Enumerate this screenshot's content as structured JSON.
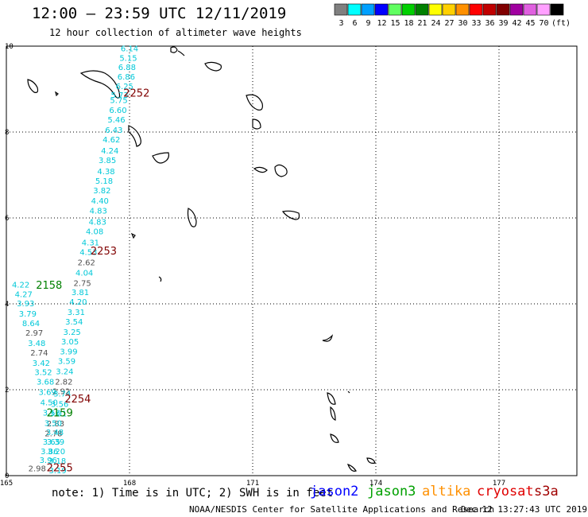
{
  "title": "12:00 – 23:59 UTC 12/11/2019",
  "subtitle": "12 hour collection of altimeter wave heights",
  "legend": {
    "unit": "(ft)",
    "bins": [
      {
        "label": "3",
        "color": "#808080"
      },
      {
        "label": "6",
        "color": "#00ffff"
      },
      {
        "label": "9",
        "color": "#00a0ff"
      },
      {
        "label": "12",
        "color": "#0000ff"
      },
      {
        "label": "15",
        "color": "#60ff60"
      },
      {
        "label": "18",
        "color": "#00d000"
      },
      {
        "label": "21",
        "color": "#008000"
      },
      {
        "label": "24",
        "color": "#ffff00"
      },
      {
        "label": "27",
        "color": "#ffd000"
      },
      {
        "label": "30",
        "color": "#ff9000"
      },
      {
        "label": "33",
        "color": "#ff0000"
      },
      {
        "label": "36",
        "color": "#c00000"
      },
      {
        "label": "39",
        "color": "#800000"
      },
      {
        "label": "42",
        "color": "#a000a0"
      },
      {
        "label": "45",
        "color": "#e060e0"
      },
      {
        "label": "70",
        "color": "#ffa0ff"
      },
      {
        "label": "",
        "color": "#000000"
      }
    ]
  },
  "axes": {
    "lon_labels": [
      "165",
      "168",
      "171",
      "174",
      "177"
    ],
    "lat_labels": [
      "0",
      "2",
      "4",
      "6",
      "8",
      "10"
    ]
  },
  "colors": {
    "cyan": "#00c8d8",
    "gray": "#505050",
    "maroon": "#800000",
    "green": "#008000"
  },
  "passes": [
    {
      "label": "2252",
      "lon": 167.85,
      "lat": 8.82,
      "color": "#800000"
    },
    {
      "label": "2253",
      "lon": 167.05,
      "lat": 5.15,
      "color": "#800000"
    },
    {
      "label": "2158",
      "lon": 165.72,
      "lat": 4.35,
      "color": "#008000"
    },
    {
      "label": "2254",
      "lon": 166.42,
      "lat": 1.7,
      "color": "#800000"
    },
    {
      "label": "2159",
      "lon": 165.98,
      "lat": 1.38,
      "color": "#008000"
    },
    {
      "label": "2255",
      "lon": 165.98,
      "lat": 0.1,
      "color": "#800000"
    }
  ],
  "observations": [
    {
      "v": "6.14",
      "lon": 168.0,
      "lat": 9.88,
      "c": "cyan"
    },
    {
      "v": "5.15",
      "lon": 167.97,
      "lat": 9.66,
      "c": "cyan"
    },
    {
      "v": "6.88",
      "lon": 167.94,
      "lat": 9.44,
      "c": "cyan"
    },
    {
      "v": "6.86",
      "lon": 167.92,
      "lat": 9.22,
      "c": "cyan"
    },
    {
      "v": "6.25",
      "lon": 167.88,
      "lat": 9.0,
      "c": "cyan"
    },
    {
      "v": "5.73",
      "lon": 167.76,
      "lat": 8.8,
      "c": "cyan"
    },
    {
      "v": "5.75",
      "lon": 167.74,
      "lat": 8.68,
      "c": "cyan"
    },
    {
      "v": "6.60",
      "lon": 167.72,
      "lat": 8.44,
      "c": "cyan"
    },
    {
      "v": "5.46",
      "lon": 167.68,
      "lat": 8.22,
      "c": "cyan"
    },
    {
      "v": "6.43",
      "lon": 167.62,
      "lat": 7.98,
      "c": "cyan"
    },
    {
      "v": "4.62",
      "lon": 167.56,
      "lat": 7.76,
      "c": "cyan"
    },
    {
      "v": "4.24",
      "lon": 167.52,
      "lat": 7.5,
      "c": "cyan"
    },
    {
      "v": "3.85",
      "lon": 167.46,
      "lat": 7.28,
      "c": "cyan"
    },
    {
      "v": "4.38",
      "lon": 167.43,
      "lat": 7.02,
      "c": "cyan"
    },
    {
      "v": "5.18",
      "lon": 167.38,
      "lat": 6.8,
      "c": "cyan"
    },
    {
      "v": "3.82",
      "lon": 167.33,
      "lat": 6.57,
      "c": "cyan"
    },
    {
      "v": "4.40",
      "lon": 167.28,
      "lat": 6.33,
      "c": "cyan"
    },
    {
      "v": "4.83",
      "lon": 167.24,
      "lat": 6.1,
      "c": "cyan"
    },
    {
      "v": "4.83",
      "lon": 167.22,
      "lat": 5.84,
      "c": "cyan"
    },
    {
      "v": "4.08",
      "lon": 167.15,
      "lat": 5.62,
      "c": "cyan"
    },
    {
      "v": "4.31",
      "lon": 167.05,
      "lat": 5.36,
      "c": "cyan"
    },
    {
      "v": "4.53",
      "lon": 167.0,
      "lat": 5.14,
      "c": "cyan"
    },
    {
      "v": "2.62",
      "lon": 166.95,
      "lat": 4.9,
      "c": "gray"
    },
    {
      "v": "4.04",
      "lon": 166.9,
      "lat": 4.66,
      "c": "cyan"
    },
    {
      "v": "2.75",
      "lon": 166.85,
      "lat": 4.42,
      "c": "gray"
    },
    {
      "v": "3.81",
      "lon": 166.8,
      "lat": 4.2,
      "c": "cyan"
    },
    {
      "v": "4.20",
      "lon": 166.75,
      "lat": 3.98,
      "c": "cyan"
    },
    {
      "v": "3.31",
      "lon": 166.7,
      "lat": 3.74,
      "c": "cyan"
    },
    {
      "v": "3.54",
      "lon": 166.65,
      "lat": 3.52,
      "c": "cyan"
    },
    {
      "v": "3.25",
      "lon": 166.6,
      "lat": 3.28,
      "c": "cyan"
    },
    {
      "v": "3.05",
      "lon": 166.55,
      "lat": 3.06,
      "c": "cyan"
    },
    {
      "v": "3.99",
      "lon": 166.52,
      "lat": 2.82,
      "c": "cyan"
    },
    {
      "v": "3.59",
      "lon": 166.47,
      "lat": 2.6,
      "c": "cyan"
    },
    {
      "v": "3.24",
      "lon": 166.42,
      "lat": 2.36,
      "c": "cyan"
    },
    {
      "v": "2.82",
      "lon": 166.4,
      "lat": 2.12,
      "c": "gray"
    },
    {
      "v": "2.92",
      "lon": 166.34,
      "lat": 1.9,
      "c": "gray"
    },
    {
      "v": "3.74",
      "lon": 166.36,
      "lat": 1.84,
      "c": "cyan"
    },
    {
      "v": "3.56",
      "lon": 166.3,
      "lat": 1.6,
      "c": "cyan"
    },
    {
      "v": "3.01",
      "lon": 166.26,
      "lat": 1.38,
      "c": "cyan"
    },
    {
      "v": "2.83",
      "lon": 166.2,
      "lat": 1.15,
      "c": "gray"
    },
    {
      "v": "2.78",
      "lon": 166.15,
      "lat": 0.92,
      "c": "gray"
    },
    {
      "v": "3.65",
      "lon": 166.1,
      "lat": 0.72,
      "c": "cyan"
    },
    {
      "v": "3.86",
      "lon": 166.05,
      "lat": 0.5,
      "c": "cyan"
    },
    {
      "v": "3.96",
      "lon": 166.02,
      "lat": 0.3,
      "c": "cyan"
    },
    {
      "v": "4.22",
      "lon": 165.35,
      "lat": 4.38,
      "c": "cyan"
    },
    {
      "v": "4.27",
      "lon": 165.42,
      "lat": 4.16,
      "c": "cyan"
    },
    {
      "v": "3.93",
      "lon": 165.47,
      "lat": 3.94,
      "c": "cyan"
    },
    {
      "v": "3.79",
      "lon": 165.52,
      "lat": 3.7,
      "c": "cyan"
    },
    {
      "v": "8.64",
      "lon": 165.6,
      "lat": 3.48,
      "c": "cyan"
    },
    {
      "v": "2.97",
      "lon": 165.68,
      "lat": 3.26,
      "c": "gray"
    },
    {
      "v": "3.48",
      "lon": 165.74,
      "lat": 3.02,
      "c": "cyan"
    },
    {
      "v": "2.74",
      "lon": 165.8,
      "lat": 2.8,
      "c": "gray"
    },
    {
      "v": "3.42",
      "lon": 165.85,
      "lat": 2.56,
      "c": "cyan"
    },
    {
      "v": "3.52",
      "lon": 165.9,
      "lat": 2.34,
      "c": "cyan"
    },
    {
      "v": "3.68",
      "lon": 165.95,
      "lat": 2.12,
      "c": "cyan"
    },
    {
      "v": "3.69",
      "lon": 166.0,
      "lat": 1.88,
      "c": "cyan"
    },
    {
      "v": "4.50",
      "lon": 166.04,
      "lat": 1.64,
      "c": "cyan"
    },
    {
      "v": "3.56",
      "lon": 166.1,
      "lat": 1.4,
      "c": "cyan"
    },
    {
      "v": "3.50",
      "lon": 166.14,
      "lat": 1.16,
      "c": "cyan"
    },
    {
      "v": "3.48",
      "lon": 166.18,
      "lat": 0.94,
      "c": "cyan"
    },
    {
      "v": "3.39",
      "lon": 166.2,
      "lat": 0.72,
      "c": "cyan"
    },
    {
      "v": "3.20",
      "lon": 166.22,
      "lat": 0.5,
      "c": "cyan"
    },
    {
      "v": "3.18",
      "lon": 166.24,
      "lat": 0.28,
      "c": "cyan"
    },
    {
      "v": "3.19",
      "lon": 166.25,
      "lat": 0.06,
      "c": "cyan"
    },
    {
      "v": "2.98",
      "lon": 165.75,
      "lat": 0.1,
      "c": "gray"
    }
  ],
  "footer": {
    "note": "note: 1) Time is in UTC; 2) SWH is in feet",
    "satellites": [
      {
        "name": "jason2",
        "color": "#0000ff"
      },
      {
        "name": "jason3",
        "color": "#00a000"
      },
      {
        "name": "altika",
        "color": "#ff9000"
      },
      {
        "name": "cryosat",
        "color": "#e00000"
      },
      {
        "name": "s3a",
        "color": "#a00000"
      }
    ],
    "credit": "NOAA/NESDIS Center for Satellite Applications and Research",
    "timestamp": "Dec 12 13:27:43 UTC 2019"
  }
}
